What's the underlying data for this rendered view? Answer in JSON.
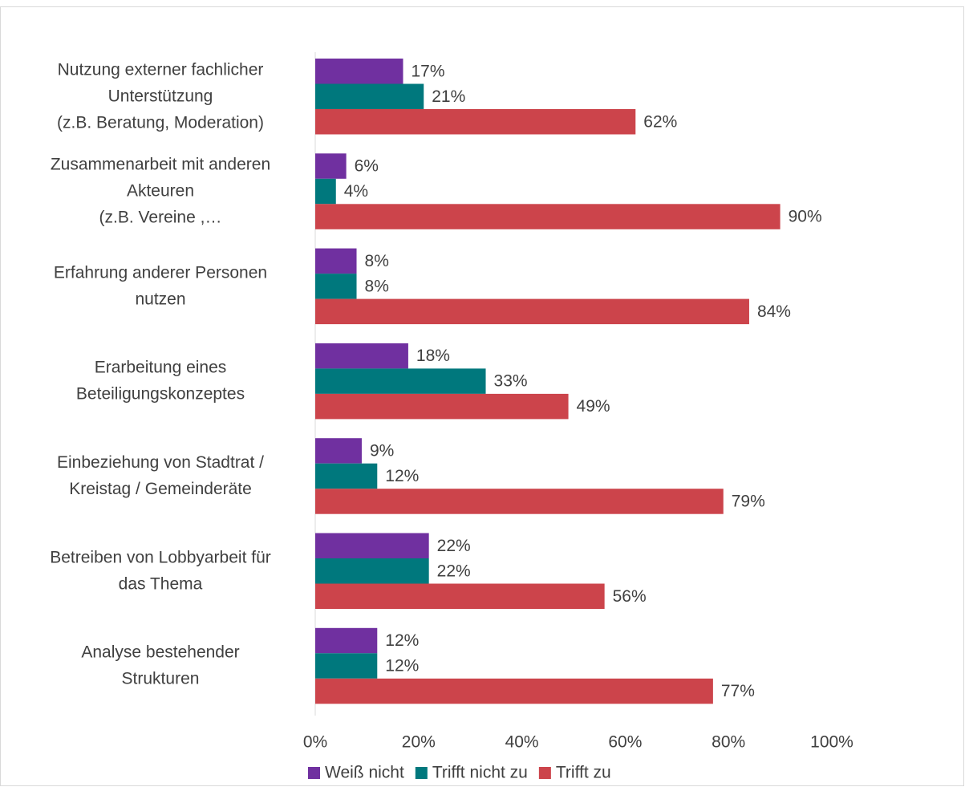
{
  "chart_data": {
    "type": "bar",
    "orientation": "horizontal",
    "categories": [
      "Nutzung externer fachlicher\nUnterstützung\n(z.B. Beratung, Moderation)",
      "Zusammenarbeit mit anderen\nAkteuren\n(z.B. Vereine ,…",
      "Erfahrung anderer Personen\nnutzen",
      "Erarbeitung eines\nBeteiligungskonzeptes",
      "Einbeziehung von Stadtrat /\nKreistag / Gemeinderäte",
      "Betreiben von Lobbyarbeit für\ndas Thema",
      "Analyse bestehender\nStrukturen"
    ],
    "series": [
      {
        "name": "Weiß nicht",
        "color": "#7030a0",
        "values": [
          17,
          6,
          8,
          18,
          9,
          22,
          12
        ],
        "value_labels": [
          "17%",
          "6%",
          "8%",
          "18%",
          "9%",
          "22%",
          "12%"
        ]
      },
      {
        "name": "Trifft nicht zu",
        "color": "#00787d",
        "values": [
          21,
          4,
          8,
          33,
          12,
          22,
          12
        ],
        "value_labels": [
          "21%",
          "4%",
          "8%",
          "33%",
          "12%",
          "22%",
          "12%"
        ]
      },
      {
        "name": "Trifft zu",
        "color": "#cc444b",
        "values": [
          62,
          90,
          84,
          49,
          79,
          56,
          77
        ],
        "value_labels": [
          "62%",
          "90%",
          "84%",
          "49%",
          "79%",
          "56%",
          "77%"
        ]
      }
    ],
    "xlim": [
      0,
      100
    ],
    "xticks": [
      {
        "value": 0,
        "label": "0%"
      },
      {
        "value": 20,
        "label": "20%"
      },
      {
        "value": 40,
        "label": "40%"
      },
      {
        "value": 60,
        "label": "60%"
      },
      {
        "value": 80,
        "label": "80%"
      },
      {
        "value": 100,
        "label": "100%"
      }
    ],
    "legend": "bottom"
  }
}
